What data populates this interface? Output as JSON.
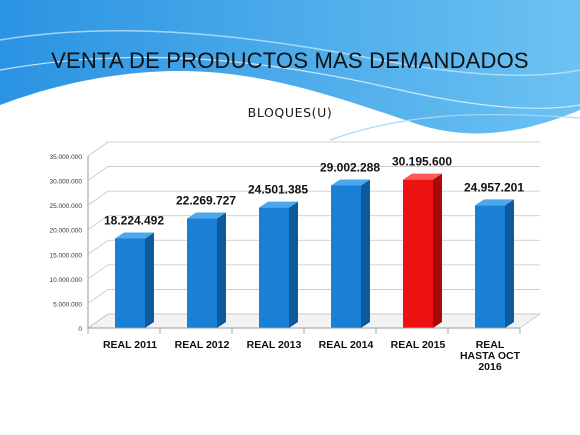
{
  "slide": {
    "title": "VENTA DE PRODUCTOS MAS DEMANDADOS"
  },
  "colors": {
    "bar": "#1a7fd6",
    "highlight": "#ee1111",
    "background_wave": "#2f9be6"
  },
  "chart_data": {
    "type": "bar",
    "title": "BLOQUES(U)",
    "xlabel": "",
    "ylabel": "",
    "categories": [
      "REAL 2011",
      "REAL 2012",
      "REAL 2013",
      "REAL 2014",
      "REAL 2015",
      "REAL HASTA OCT 2016"
    ],
    "values": [
      18224492,
      22269727,
      24501385,
      29002288,
      30195600,
      24957201
    ],
    "value_labels": [
      "18.224.492",
      "22.269.727",
      "24.501.385",
      "29.002.288",
      "30.195.600",
      "24.957.201"
    ],
    "highlight_index": 4,
    "ylim": [
      0,
      35000000
    ],
    "y_ticks": [
      0,
      5000000,
      10000000,
      15000000,
      20000000,
      25000000,
      30000000,
      35000000
    ],
    "y_tick_labels": [
      "0",
      "5.000.000",
      "10.000.000",
      "15.000.000",
      "20.000.000",
      "25.000.000",
      "30.000.000",
      "35.000.000"
    ],
    "grid": true,
    "legend": "none",
    "style": "3d"
  }
}
